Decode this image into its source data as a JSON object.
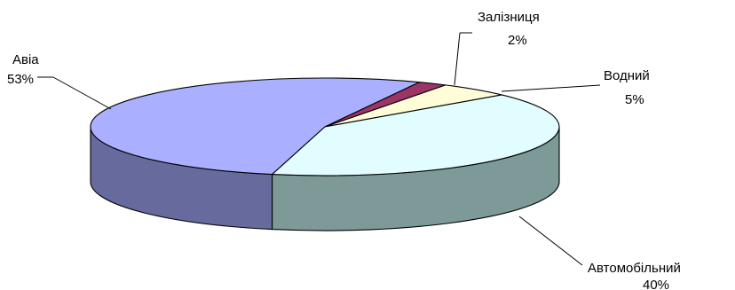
{
  "chart_data": {
    "type": "pie",
    "style": "3d",
    "slices": [
      {
        "label": "Авіа",
        "value": 53,
        "value_label": "53%",
        "color": "#aab0ff",
        "side_color": "#676a9c"
      },
      {
        "label": "Залізниця",
        "value": 2,
        "value_label": "2%",
        "color": "#9c3466",
        "side_color": "#6b2346"
      },
      {
        "label": "Водний",
        "value": 5,
        "value_label": "5%",
        "color": "#fffdd8",
        "side_color": "#b0ae95"
      },
      {
        "label": "Автомобільний",
        "value": 40,
        "value_label": "40%",
        "color": "#e2fdff",
        "side_color": "#7d9a98"
      }
    ],
    "legend": "none"
  }
}
